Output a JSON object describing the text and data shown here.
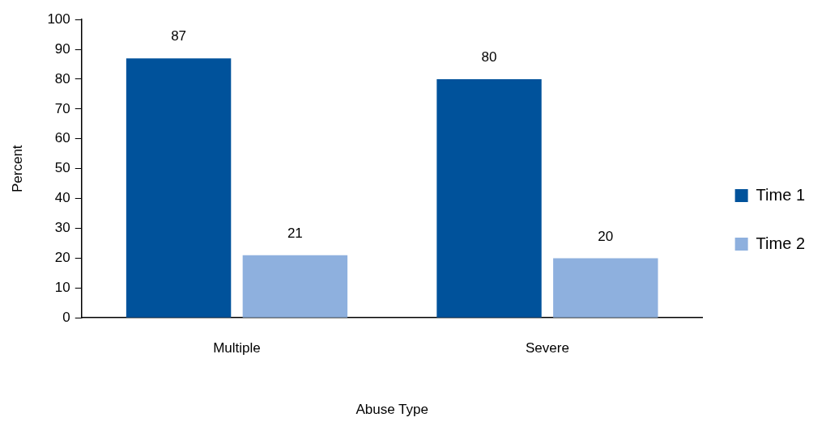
{
  "chart_data": {
    "type": "bar",
    "xlabel": "Abuse Type",
    "ylabel": "Percent",
    "categories": [
      "Multiple",
      "Severe"
    ],
    "series": [
      {
        "name": "Time 1",
        "color": "#00529b",
        "values": [
          87,
          80
        ]
      },
      {
        "name": "Time 2",
        "color": "#8eb0de",
        "values": [
          21,
          20
        ]
      }
    ],
    "ylim": [
      0,
      100
    ],
    "yticks": [
      0,
      10,
      20,
      30,
      40,
      50,
      60,
      70,
      80,
      90,
      100
    ],
    "grid": false,
    "legend": "right",
    "data_labels": true
  }
}
